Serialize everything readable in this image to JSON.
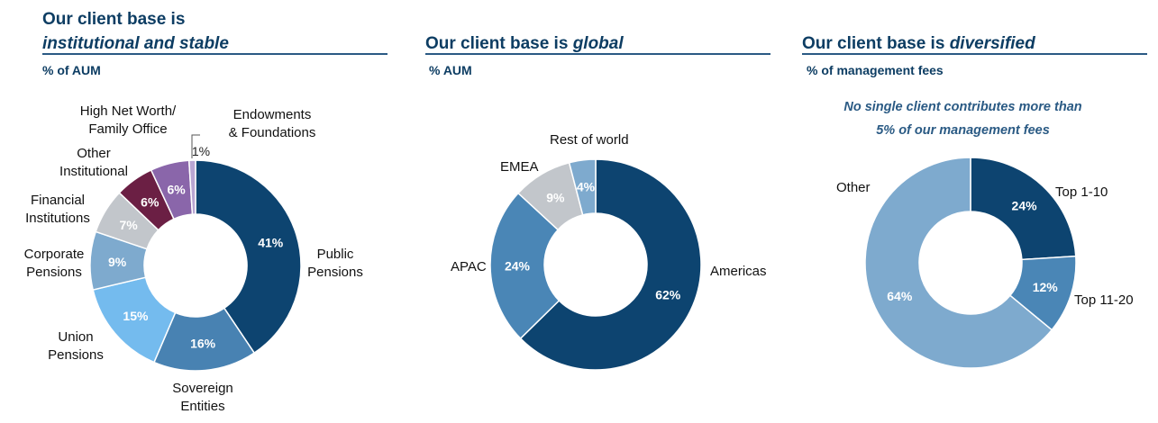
{
  "panels": [
    {
      "title_plain": "Our client base is",
      "title_emphasis": "institutional and stable",
      "subtitle": "% of AUM"
    },
    {
      "title_plain": "Our client base is",
      "title_emphasis": "global",
      "subtitle": "% AUM"
    },
    {
      "title_plain": "Our client base is",
      "title_emphasis": "diversified",
      "subtitle": "% of management fees",
      "note_line1": "No single client contributes more than",
      "note_line2": "5% of our management fees"
    }
  ],
  "chart_data": [
    {
      "type": "pie",
      "donut": true,
      "segments": [
        {
          "category": [
            "Public",
            "Pensions"
          ],
          "value": 41,
          "label": "41%",
          "color": "#0d4470"
        },
        {
          "category": [
            "Sovereign",
            "Entities"
          ],
          "value": 16,
          "label": "16%",
          "color": "#4882b2"
        },
        {
          "category": [
            "Union",
            "Pensions"
          ],
          "value": 15,
          "label": "15%",
          "color": "#74bbee"
        },
        {
          "category": [
            "Corporate",
            "Pensions"
          ],
          "value": 9,
          "label": "9%",
          "color": "#7eaace"
        },
        {
          "category": [
            "Financial",
            "Institutions"
          ],
          "value": 7,
          "label": "7%",
          "color": "#c2c6cb"
        },
        {
          "category": [
            "Other",
            "Institutional"
          ],
          "value": 6,
          "label": "6%",
          "color": "#6b1f44"
        },
        {
          "category": [
            "High Net Worth/",
            "Family Office"
          ],
          "value": 6,
          "label": "6%",
          "color": "#8a66aa"
        },
        {
          "category": [
            "Endowments",
            "& Foundations"
          ],
          "value": 1,
          "label": "1%",
          "color": "#b9a6d3"
        }
      ]
    },
    {
      "type": "pie",
      "donut": true,
      "segments": [
        {
          "category": [
            "Americas"
          ],
          "value": 62,
          "label": "62%",
          "color": "#0d4470"
        },
        {
          "category": [
            "APAC"
          ],
          "value": 24,
          "label": "24%",
          "color": "#4a86b6"
        },
        {
          "category": [
            "EMEA"
          ],
          "value": 9,
          "label": "9%",
          "color": "#c2c6cb"
        },
        {
          "category": [
            "Rest of world"
          ],
          "value": 4,
          "label": "4%",
          "color": "#7eaace"
        }
      ]
    },
    {
      "type": "pie",
      "donut": true,
      "segments": [
        {
          "category": [
            "Top 1-10"
          ],
          "value": 24,
          "label": "24%",
          "color": "#0d4470"
        },
        {
          "category": [
            "Top 11-20"
          ],
          "value": 12,
          "label": "12%",
          "color": "#4a86b6"
        },
        {
          "category": [
            "Other"
          ],
          "value": 64,
          "label": "64%",
          "color": "#7eaace"
        }
      ]
    }
  ]
}
